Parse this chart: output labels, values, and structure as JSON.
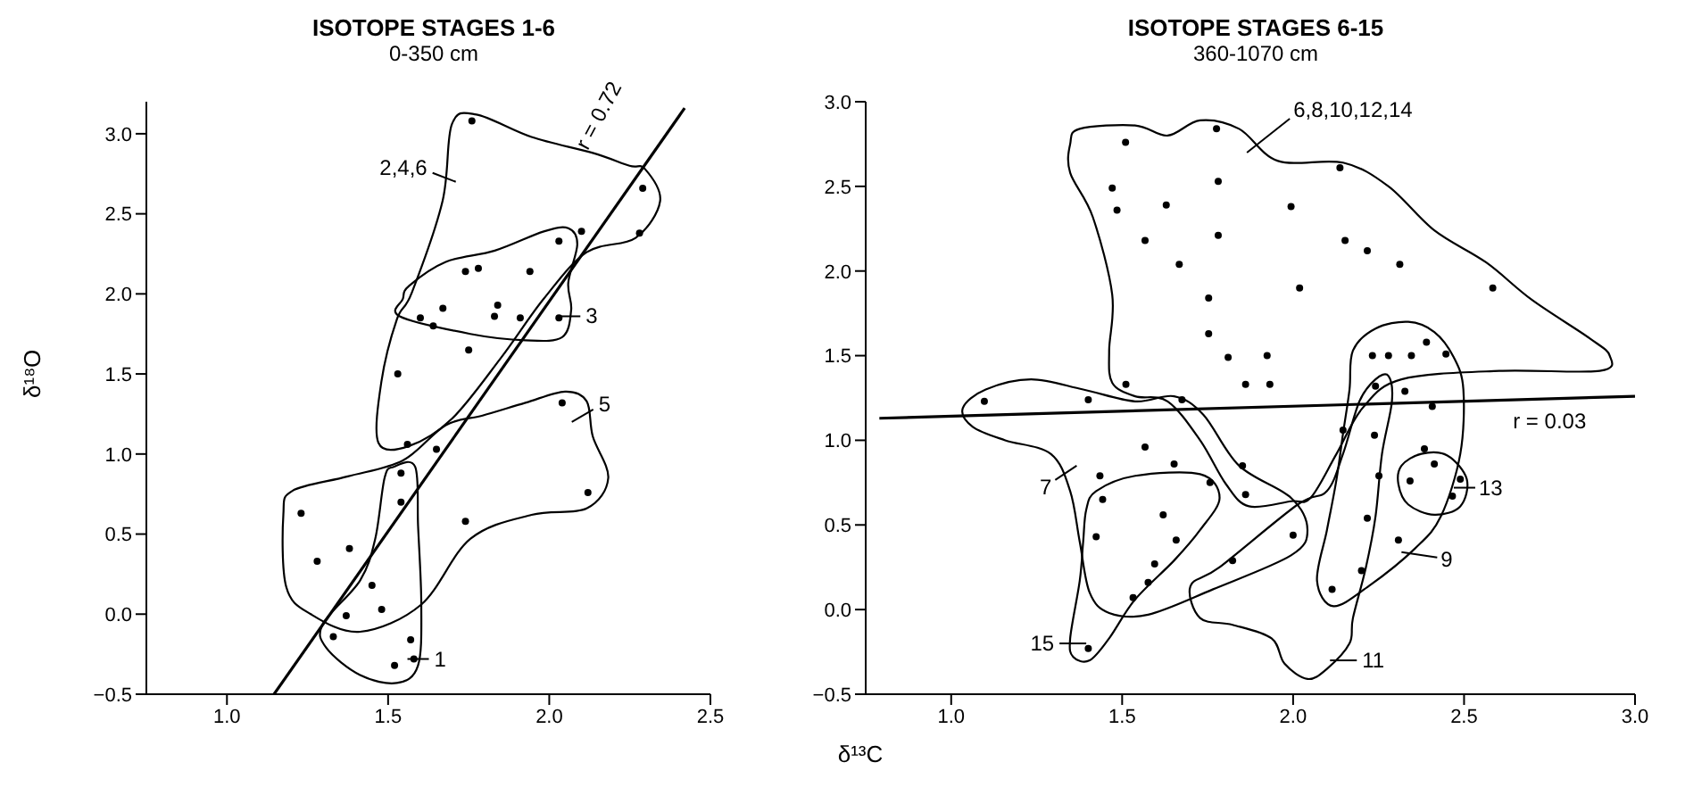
{
  "chart_data": [
    {
      "type": "scatter",
      "title": "ISOTOPE STAGES 1-6",
      "subtitle": "0-350 cm",
      "xlabel": "δ¹³C",
      "ylabel": "δ¹⁸O",
      "xlim": [
        0.75,
        2.5
      ],
      "ylim": [
        -0.5,
        3.2
      ],
      "xticks": [
        {
          "value": 1,
          "label": "1.0"
        },
        {
          "value": 1.5,
          "label": "1.5"
        },
        {
          "value": 2,
          "label": "2.0"
        },
        {
          "value": 2.5,
          "label": "2.5"
        }
      ],
      "yticks": [
        {
          "value": -0.5,
          "label": "−0.5"
        },
        {
          "value": 0,
          "label": "0.0"
        },
        {
          "value": 0.5,
          "label": "0.5"
        },
        {
          "value": 1,
          "label": "1.0"
        },
        {
          "value": 1.5,
          "label": "1.5"
        },
        {
          "value": 2,
          "label": "2.0"
        },
        {
          "value": 2.5,
          "label": "2.5"
        },
        {
          "value": 3,
          "label": "3.0"
        }
      ],
      "series": [
        {
          "type": "scatter",
          "marker": "circle",
          "color": "#000000",
          "x": [
            1.76,
            2.29,
            2.28,
            2.1,
            2.03,
            1.78,
            1.74,
            1.94,
            1.67,
            1.6,
            1.64,
            1.84,
            1.83,
            1.91,
            2.03,
            1.75,
            1.53,
            1.56,
            1.65,
            2.04,
            1.54,
            1.54,
            1.23,
            1.74,
            2.12,
            1.38,
            1.28,
            1.45,
            1.48,
            1.37,
            1.33,
            1.57,
            1.52,
            1.58
          ],
          "values": [
            3.08,
            2.66,
            2.38,
            2.39,
            2.33,
            2.16,
            2.14,
            2.14,
            1.91,
            1.85,
            1.8,
            1.93,
            1.86,
            1.85,
            1.85,
            1.65,
            1.5,
            1.06,
            1.03,
            1.32,
            0.88,
            0.7,
            0.63,
            0.58,
            0.76,
            0.41,
            0.33,
            0.18,
            0.03,
            -0.01,
            -0.14,
            -0.16,
            -0.32,
            -0.28
          ]
        },
        {
          "type": "line",
          "color": "#000000",
          "x": [
            1.146,
            2.42
          ],
          "values": [
            -0.5,
            3.16
          ]
        }
      ],
      "annotations": [
        "2,4,6",
        "3",
        "5",
        "1",
        {
          "text": "r = 0.72",
          "x": 2.25,
          "y": 2.67
        }
      ]
    },
    {
      "type": "scatter",
      "title": "ISOTOPE STAGES 6-15",
      "subtitle": "360-1070 cm",
      "xlim": [
        0.75,
        3.0
      ],
      "ylim": [
        -0.5,
        3.0
      ],
      "xticks": [
        {
          "value": 1,
          "label": "1.0"
        },
        {
          "value": 1.5,
          "label": "1.5"
        },
        {
          "value": 2,
          "label": "2.0"
        },
        {
          "value": 2.5,
          "label": "2.5"
        },
        {
          "value": 3,
          "label": "3.0"
        }
      ],
      "yticks": [
        {
          "value": -0.5,
          "label": "−0.5"
        },
        {
          "value": 0,
          "label": "0.0"
        },
        {
          "value": 0.5,
          "label": "0.5"
        },
        {
          "value": 1,
          "label": "1.0"
        },
        {
          "value": 1.5,
          "label": "1.5"
        },
        {
          "value": 2,
          "label": "2.0"
        },
        {
          "value": 2.5,
          "label": "2.5"
        },
        {
          "value": 3,
          "label": "3.0"
        }
      ],
      "series": [
        {
          "type": "scatter",
          "marker": "circle",
          "color": "#000000",
          "x": [
            1.776,
            1.51,
            1.471,
            1.485,
            1.629,
            1.567,
            1.781,
            1.781,
            1.667,
            1.994,
            2.152,
            2.137,
            2.217,
            2.312,
            2.019,
            2.584,
            1.753,
            1.753,
            1.81,
            1.924,
            1.861,
            1.932,
            1.511,
            1.097,
            1.401,
            1.675,
            2.232,
            2.279,
            2.346,
            2.39,
            2.447,
            2.241,
            2.327,
            2.407,
            2.146,
            2.238,
            2.384,
            2.413,
            2.342,
            2.489,
            2.466,
            2.251,
            2.217,
            2.308,
            2.2,
            2.114,
            1.567,
            1.652,
            1.435,
            1.443,
            1.757,
            1.852,
            1.861,
            1.62,
            1.424,
            1.658,
            1.595,
            1.576,
            1.532,
            2.0,
            1.823,
            1.401
          ],
          "values": [
            2.84,
            2.76,
            2.49,
            2.36,
            2.39,
            2.18,
            2.53,
            2.21,
            2.04,
            2.38,
            2.18,
            2.61,
            2.12,
            2.04,
            1.9,
            1.9,
            1.84,
            1.63,
            1.49,
            1.5,
            1.33,
            1.33,
            1.33,
            1.23,
            1.24,
            1.24,
            1.5,
            1.5,
            1.5,
            1.58,
            1.51,
            1.32,
            1.29,
            1.2,
            1.06,
            1.03,
            0.95,
            0.86,
            0.76,
            0.77,
            0.67,
            0.79,
            0.54,
            0.41,
            0.23,
            0.12,
            0.96,
            0.86,
            0.79,
            0.65,
            0.75,
            0.85,
            0.68,
            0.56,
            0.43,
            0.41,
            0.27,
            0.16,
            0.07,
            0.44,
            0.29,
            -0.23
          ]
        },
        {
          "type": "line",
          "color": "#000000",
          "x": [
            0.79,
            3.0
          ],
          "values": [
            1.13,
            1.26
          ]
        }
      ],
      "annotations": [
        "6,8,10,12,14",
        "7",
        "15",
        "11",
        "9",
        "13",
        {
          "text": "r = 0.03",
          "x": 2.75,
          "y": 1.24
        }
      ]
    }
  ]
}
